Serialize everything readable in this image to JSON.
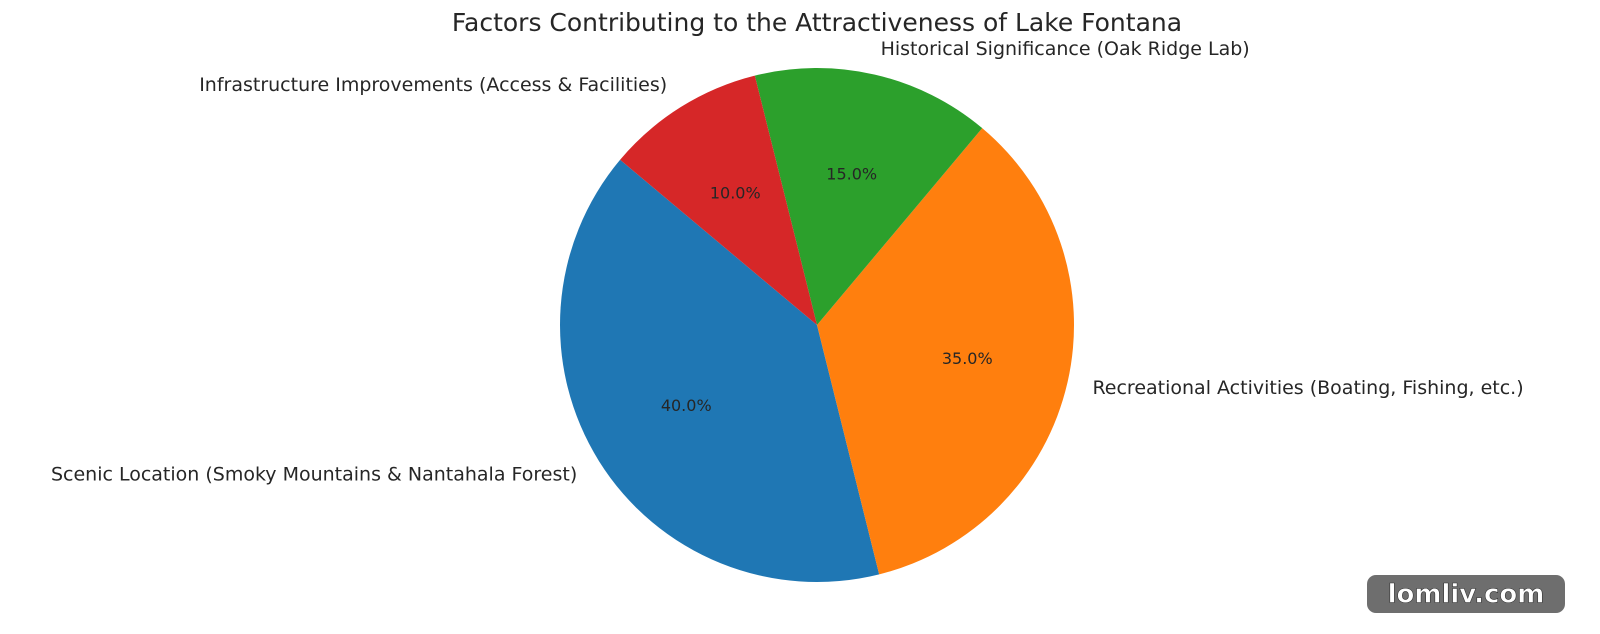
{
  "chart_data": {
    "type": "pie",
    "title": "Factors Contributing to the Attractiveness of Lake Fontana",
    "categories": [
      "Scenic Location (Smoky Mountains & Nantahala Forest)",
      "Recreational Activities (Boating, Fishing, etc.)",
      "Historical Significance (Oak Ridge Lab)",
      "Infrastructure Improvements (Access & Facilities)"
    ],
    "values": [
      40,
      35,
      15,
      10
    ],
    "value_labels": [
      "40.0%",
      "35.0%",
      "15.0%",
      "10.0%"
    ],
    "colors": [
      "#1f77b4",
      "#ff7f0e",
      "#2ca02c",
      "#d62728"
    ]
  },
  "watermark": "lomliv.com"
}
